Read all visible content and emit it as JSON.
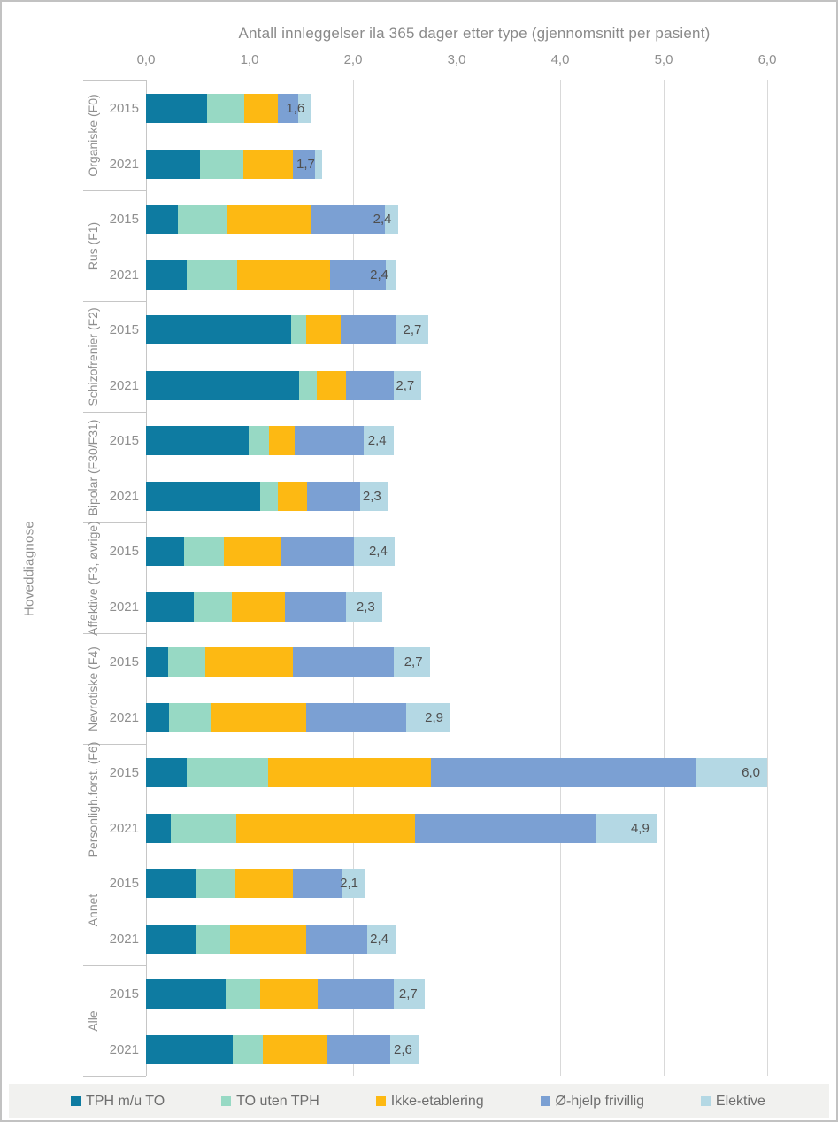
{
  "title": "Antall innleggelser ila 365 dager etter type (gjennomsnitt per pasient)",
  "y_axis_title": "Hoveddiagnose",
  "chart_data": {
    "type": "bar",
    "orientation": "horizontal-stacked",
    "title": "Antall innleggelser ila 365 dager etter type (gjennomsnitt per pasient)",
    "xlabel": "",
    "ylabel": "Hoveddiagnose",
    "xlim": [
      0,
      6
    ],
    "x_ticks": [
      "0,0",
      "1,0",
      "2,0",
      "3,0",
      "4,0",
      "5,0",
      "6,0"
    ],
    "grid": true,
    "legend_position": "bottom",
    "series_names": [
      "TPH m/u TO",
      "TO uten TPH",
      "Ikke-etablering",
      "Ø-hjelp frivillig",
      "Elektive"
    ],
    "series_colors": [
      "#0e7ba1",
      "#97d9c4",
      "#fdb913",
      "#7ba0d3",
      "#b4d8e4"
    ],
    "rows": [
      {
        "group": "Organiske (F0)",
        "year": "2015",
        "values": [
          0.59,
          0.36,
          0.32,
          0.2,
          0.13
        ],
        "label": "1,6"
      },
      {
        "group": "Organiske (F0)",
        "year": "2021",
        "values": [
          0.52,
          0.42,
          0.48,
          0.21,
          0.07
        ],
        "label": "1,7"
      },
      {
        "group": "Rus (F1)",
        "year": "2015",
        "values": [
          0.31,
          0.47,
          0.81,
          0.72,
          0.13
        ],
        "label": "2,4"
      },
      {
        "group": "Rus (F1)",
        "year": "2021",
        "values": [
          0.39,
          0.49,
          0.9,
          0.54,
          0.09
        ],
        "label": "2,4"
      },
      {
        "group": "Schizofrenier (F2)",
        "year": "2015",
        "values": [
          1.4,
          0.15,
          0.33,
          0.54,
          0.31
        ],
        "label": "2,7"
      },
      {
        "group": "Schizofrenier (F2)",
        "year": "2021",
        "values": [
          1.48,
          0.17,
          0.28,
          0.46,
          0.27
        ],
        "label": "2,7"
      },
      {
        "group": "Bipolar (F30/F31)",
        "year": "2015",
        "values": [
          0.99,
          0.2,
          0.25,
          0.66,
          0.29
        ],
        "label": "2,4"
      },
      {
        "group": "Bipolar (F30/F31)",
        "year": "2021",
        "values": [
          1.1,
          0.17,
          0.29,
          0.51,
          0.27
        ],
        "label": "2,3"
      },
      {
        "group": "Affektive (F3, øvrige)",
        "year": "2015",
        "values": [
          0.37,
          0.38,
          0.55,
          0.71,
          0.39
        ],
        "label": "2,4"
      },
      {
        "group": "Affektive (F3, øvrige)",
        "year": "2021",
        "values": [
          0.46,
          0.37,
          0.51,
          0.59,
          0.35
        ],
        "label": "2,3"
      },
      {
        "group": "Nevrotiske (F4)",
        "year": "2015",
        "values": [
          0.21,
          0.36,
          0.85,
          0.97,
          0.35
        ],
        "label": "2,7"
      },
      {
        "group": "Nevrotiske (F4)",
        "year": "2021",
        "values": [
          0.22,
          0.41,
          0.92,
          0.96,
          0.43
        ],
        "label": "2,9"
      },
      {
        "group": "Personligh.forst. (F6)",
        "year": "2015",
        "values": [
          0.39,
          0.79,
          1.57,
          2.57,
          0.68
        ],
        "label": "6,0"
      },
      {
        "group": "Personligh.forst. (F6)",
        "year": "2021",
        "values": [
          0.24,
          0.63,
          1.73,
          1.75,
          0.58
        ],
        "label": "4,9"
      },
      {
        "group": "Annet",
        "year": "2015",
        "values": [
          0.48,
          0.38,
          0.56,
          0.48,
          0.22
        ],
        "label": "2,1"
      },
      {
        "group": "Annet",
        "year": "2021",
        "values": [
          0.48,
          0.33,
          0.74,
          0.59,
          0.27
        ],
        "label": "2,4"
      },
      {
        "group": "Alle",
        "year": "2015",
        "values": [
          0.77,
          0.33,
          0.56,
          0.73,
          0.3
        ],
        "label": "2,7"
      },
      {
        "group": "Alle",
        "year": "2021",
        "values": [
          0.84,
          0.29,
          0.61,
          0.62,
          0.28
        ],
        "label": "2,6"
      }
    ]
  },
  "colors": {
    "grid": "#d9d9d9",
    "axis": "#c6c6c6",
    "axis_text": "#8f8f8f",
    "data_label": "#4f4f4f",
    "legend_bg": "#f1f1ef",
    "legend_text": "#6e6e6e"
  }
}
